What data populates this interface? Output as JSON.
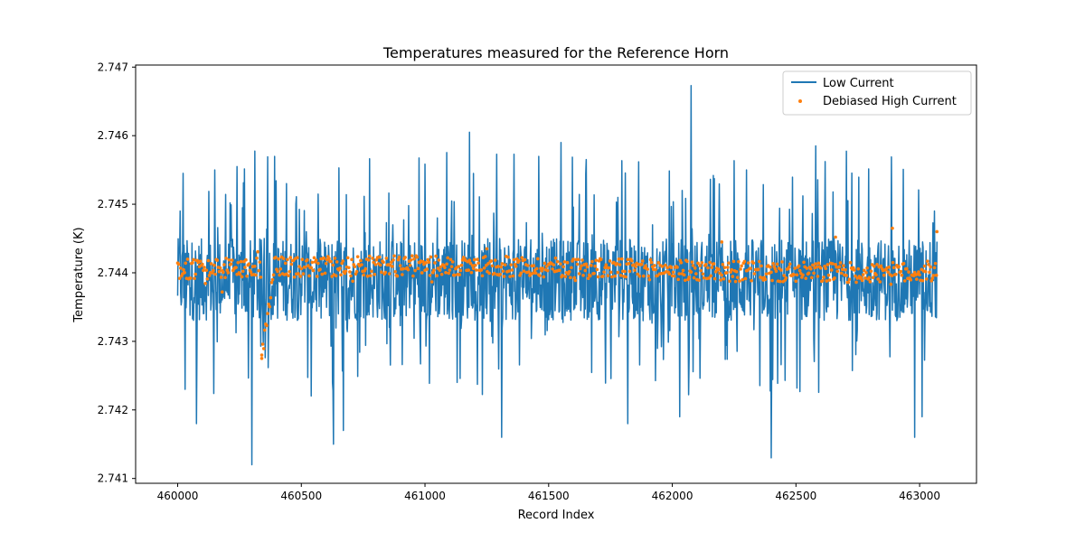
{
  "chart_data": {
    "type": "line",
    "title": "Temperatures measured for the Reference Horn",
    "xlabel": "Record Index",
    "ylabel": "Temperature (K)",
    "xlim": [
      459830,
      463230
    ],
    "ylim": [
      2.74093,
      2.74703
    ],
    "xticks": [
      460000,
      460500,
      461000,
      461500,
      462000,
      462500,
      463000
    ],
    "yticks": [
      2.741,
      2.742,
      2.743,
      2.744,
      2.745,
      2.746,
      2.747
    ],
    "x_range": [
      460000,
      463070
    ],
    "legend_position": "top-right",
    "series": [
      {
        "name": "Low Current",
        "kind": "line",
        "color": "#1f77b4",
        "baseline_mean": 2.744,
        "noise_band": [
          2.7433,
          2.7445
        ],
        "spikes": [
          {
            "x": 460010,
            "y": 2.7449
          },
          {
            "x": 460030,
            "y": 2.7423
          },
          {
            "x": 460075,
            "y": 2.7418
          },
          {
            "x": 460150,
            "y": 2.7455
          },
          {
            "x": 460240,
            "y": 2.74555
          },
          {
            "x": 460300,
            "y": 2.7412
          },
          {
            "x": 460350,
            "y": 2.7445
          },
          {
            "x": 460440,
            "y": 2.7453
          },
          {
            "x": 460520,
            "y": 2.7446
          },
          {
            "x": 460630,
            "y": 2.7415
          },
          {
            "x": 460670,
            "y": 2.7417
          },
          {
            "x": 460870,
            "y": 2.7447
          },
          {
            "x": 461050,
            "y": 2.7448
          },
          {
            "x": 461130,
            "y": 2.7424
          },
          {
            "x": 461180,
            "y": 2.74605
          },
          {
            "x": 461310,
            "y": 2.7416
          },
          {
            "x": 461550,
            "y": 2.7459
          },
          {
            "x": 461780,
            "y": 2.7451
          },
          {
            "x": 461820,
            "y": 2.7418
          },
          {
            "x": 461920,
            "y": 2.7447
          },
          {
            "x": 462030,
            "y": 2.7419
          },
          {
            "x": 462075,
            "y": 2.74673
          },
          {
            "x": 462300,
            "y": 2.7455
          },
          {
            "x": 462400,
            "y": 2.7413
          },
          {
            "x": 462580,
            "y": 2.74585
          },
          {
            "x": 462980,
            "y": 2.7416
          },
          {
            "x": 463010,
            "y": 2.7419
          },
          {
            "x": 463060,
            "y": 2.7449
          }
        ]
      },
      {
        "name": "Debiased High Current",
        "kind": "scatter",
        "color": "#ff7f0e",
        "baseline_mean": 2.74405,
        "noise_band": [
          2.7439,
          2.7442
        ],
        "dip": {
          "x_range": [
            460340,
            460390
          ],
          "y_min": 2.74278
        },
        "outliers": [
          {
            "x": 460180,
            "y": 2.74372
          },
          {
            "x": 460340,
            "y": 2.7428
          },
          {
            "x": 461250,
            "y": 2.74435
          },
          {
            "x": 462200,
            "y": 2.74445
          },
          {
            "x": 462660,
            "y": 2.74452
          },
          {
            "x": 462890,
            "y": 2.74465
          },
          {
            "x": 463070,
            "y": 2.7446
          }
        ]
      }
    ]
  }
}
